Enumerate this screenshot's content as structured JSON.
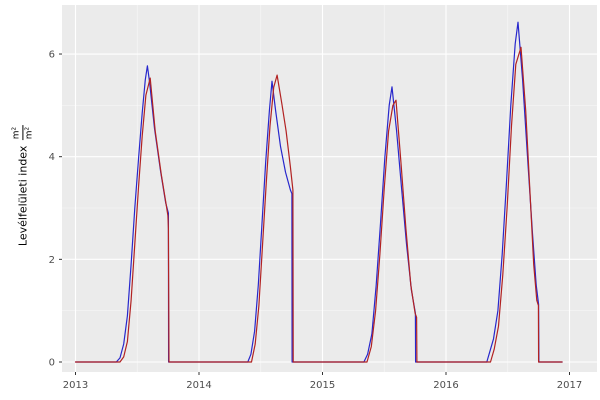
{
  "figure": {
    "background": "#FFFFFF",
    "panel_background": "#EBEBEB",
    "grid_major_color": "#FFFFFF",
    "grid_minor_color": "#FFFFFF",
    "axis_text_color": "#4D4D4D",
    "tick_mark_color": "#333333"
  },
  "y_axis": {
    "title_text": "Levélfelületi index",
    "title_frac_numerator": "m²",
    "title_frac_denominator": "m²",
    "tick_labels": [
      "0",
      "2",
      "4",
      "6"
    ],
    "tick_values": [
      0,
      2,
      4,
      6
    ],
    "minor_values": [
      1,
      3,
      5
    ]
  },
  "x_axis": {
    "tick_labels": [
      "2013",
      "2014",
      "2015",
      "2016",
      "2017"
    ],
    "tick_values": [
      2013,
      2014,
      2015,
      2016,
      2017
    ],
    "minor_values": [
      2013.5,
      2014.5,
      2015.5,
      2016.5
    ]
  },
  "chart_data": {
    "type": "line",
    "title": "",
    "xlabel": "",
    "ylabel": "Levélfelületi index m²/m²",
    "xlim": [
      2012.89,
      2017.22
    ],
    "ylim": [
      -0.2,
      6.95
    ],
    "grid": true,
    "legend": "none",
    "series": [
      {
        "name": "blue",
        "color": "#2727CC",
        "peak_values_by_year": {
          "2013": 5.77,
          "2014": 5.47,
          "2015": 5.36,
          "2016": 6.62
        },
        "points": [
          [
            2013.0,
            0
          ],
          [
            2013.33,
            0
          ],
          [
            2013.36,
            0.08
          ],
          [
            2013.39,
            0.35
          ],
          [
            2013.42,
            0.9
          ],
          [
            2013.45,
            1.9
          ],
          [
            2013.48,
            3.0
          ],
          [
            2013.51,
            3.95
          ],
          [
            2013.54,
            4.85
          ],
          [
            2013.565,
            5.5
          ],
          [
            2013.582,
            5.77
          ],
          [
            2013.6,
            5.45
          ],
          [
            2013.64,
            4.55
          ],
          [
            2013.69,
            3.7
          ],
          [
            2013.73,
            3.1
          ],
          [
            2013.752,
            2.9
          ],
          [
            2013.754,
            0
          ],
          [
            2014.0,
            0
          ],
          [
            2014.395,
            0
          ],
          [
            2014.42,
            0.15
          ],
          [
            2014.45,
            0.6
          ],
          [
            2014.48,
            1.5
          ],
          [
            2014.51,
            2.7
          ],
          [
            2014.54,
            3.9
          ],
          [
            2014.57,
            4.9
          ],
          [
            2014.591,
            5.47
          ],
          [
            2014.62,
            4.9
          ],
          [
            2014.66,
            4.2
          ],
          [
            2014.7,
            3.7
          ],
          [
            2014.74,
            3.35
          ],
          [
            2014.752,
            3.28
          ],
          [
            2014.754,
            0
          ],
          [
            2015.0,
            0
          ],
          [
            2015.335,
            0
          ],
          [
            2015.365,
            0.15
          ],
          [
            2015.4,
            0.55
          ],
          [
            2015.435,
            1.5
          ],
          [
            2015.47,
            2.7
          ],
          [
            2015.505,
            4.0
          ],
          [
            2015.54,
            5.0
          ],
          [
            2015.563,
            5.36
          ],
          [
            2015.6,
            4.5
          ],
          [
            2015.64,
            3.4
          ],
          [
            2015.68,
            2.3
          ],
          [
            2015.72,
            1.4
          ],
          [
            2015.752,
            0.95
          ],
          [
            2015.754,
            0
          ],
          [
            2016.0,
            0
          ],
          [
            2016.33,
            0
          ],
          [
            2016.355,
            0.2
          ],
          [
            2016.385,
            0.45
          ],
          [
            2016.42,
            1.0
          ],
          [
            2016.455,
            2.1
          ],
          [
            2016.49,
            3.5
          ],
          [
            2016.525,
            5.0
          ],
          [
            2016.56,
            6.2
          ],
          [
            2016.583,
            6.62
          ],
          [
            2016.62,
            5.5
          ],
          [
            2016.66,
            4.0
          ],
          [
            2016.7,
            2.5
          ],
          [
            2016.73,
            1.5
          ],
          [
            2016.75,
            1.12
          ],
          [
            2016.752,
            0
          ],
          [
            2016.94,
            0
          ]
        ]
      },
      {
        "name": "red",
        "color": "#B22222",
        "peak_values_by_year": {
          "2013": 5.53,
          "2014": 5.59,
          "2015": 5.1,
          "2016": 6.13
        },
        "points": [
          [
            2013.0,
            0
          ],
          [
            2013.36,
            0
          ],
          [
            2013.39,
            0.1
          ],
          [
            2013.42,
            0.4
          ],
          [
            2013.45,
            1.2
          ],
          [
            2013.48,
            2.3
          ],
          [
            2013.51,
            3.4
          ],
          [
            2013.54,
            4.4
          ],
          [
            2013.57,
            5.2
          ],
          [
            2013.605,
            5.53
          ],
          [
            2013.645,
            4.5
          ],
          [
            2013.695,
            3.65
          ],
          [
            2013.735,
            3.05
          ],
          [
            2013.748,
            2.85
          ],
          [
            2013.752,
            2.6
          ],
          [
            2013.757,
            0
          ],
          [
            2014.0,
            0
          ],
          [
            2014.425,
            0
          ],
          [
            2014.455,
            0.35
          ],
          [
            2014.485,
            1.1
          ],
          [
            2014.515,
            2.3
          ],
          [
            2014.545,
            3.5
          ],
          [
            2014.575,
            4.6
          ],
          [
            2014.605,
            5.35
          ],
          [
            2014.632,
            5.59
          ],
          [
            2014.67,
            5.05
          ],
          [
            2014.705,
            4.5
          ],
          [
            2014.74,
            3.8
          ],
          [
            2014.76,
            3.35
          ],
          [
            2014.763,
            0
          ],
          [
            2015.0,
            0
          ],
          [
            2015.36,
            0
          ],
          [
            2015.395,
            0.3
          ],
          [
            2015.43,
            1.0
          ],
          [
            2015.465,
            2.1
          ],
          [
            2015.5,
            3.4
          ],
          [
            2015.535,
            4.5
          ],
          [
            2015.57,
            5.0
          ],
          [
            2015.595,
            5.1
          ],
          [
            2015.635,
            3.9
          ],
          [
            2015.675,
            2.6
          ],
          [
            2015.715,
            1.5
          ],
          [
            2015.75,
            0.95
          ],
          [
            2015.762,
            0.87
          ],
          [
            2015.764,
            0
          ],
          [
            2016.0,
            0
          ],
          [
            2016.36,
            0
          ],
          [
            2016.39,
            0.25
          ],
          [
            2016.425,
            0.7
          ],
          [
            2016.46,
            1.7
          ],
          [
            2016.495,
            3.0
          ],
          [
            2016.53,
            4.6
          ],
          [
            2016.565,
            5.8
          ],
          [
            2016.607,
            6.13
          ],
          [
            2016.645,
            4.9
          ],
          [
            2016.68,
            3.3
          ],
          [
            2016.71,
            1.9
          ],
          [
            2016.735,
            1.2
          ],
          [
            2016.748,
            1.1
          ],
          [
            2016.75,
            0
          ],
          [
            2016.94,
            0
          ]
        ]
      }
    ]
  }
}
